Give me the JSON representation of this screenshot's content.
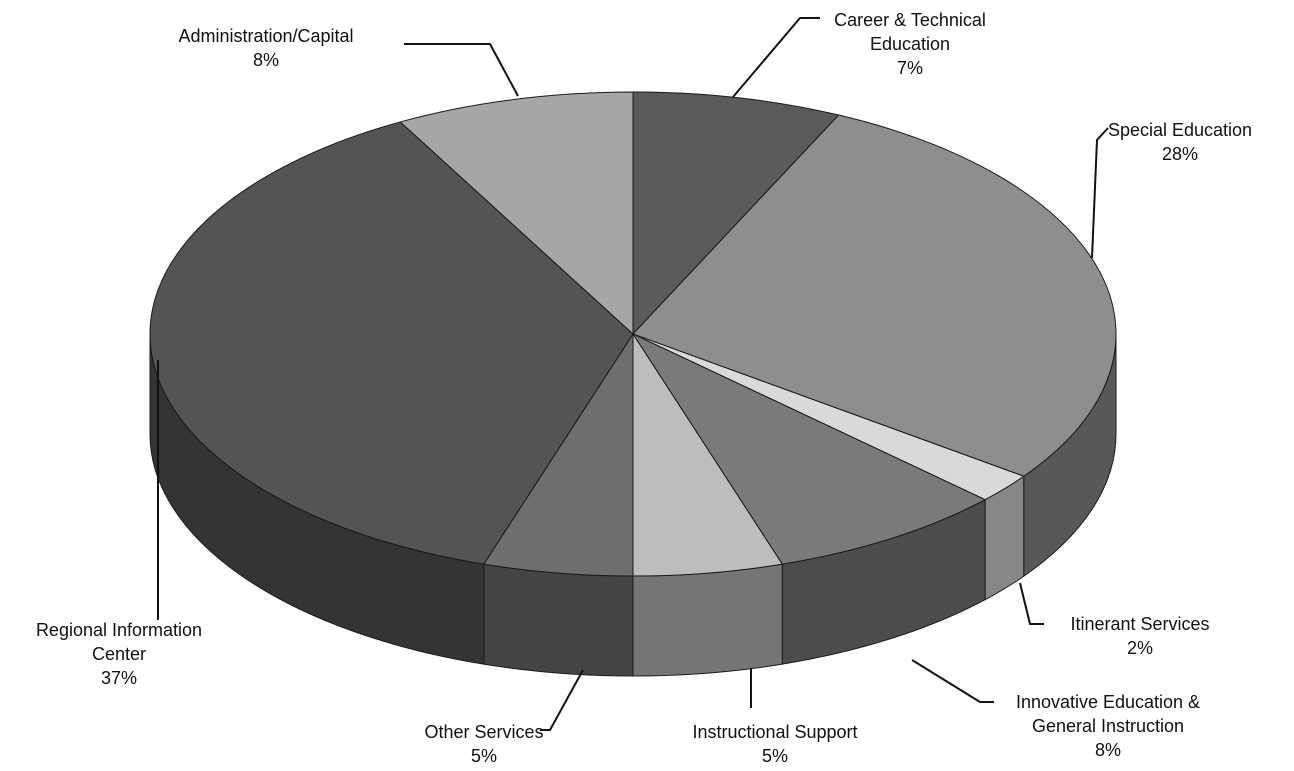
{
  "chart_data": {
    "type": "pie",
    "style": "3d",
    "title": "",
    "slices": [
      {
        "label": "Career & Technical\nEducation",
        "pct_label": "7%",
        "value": 7,
        "color": "#5a5a5a"
      },
      {
        "label": "Special Education",
        "pct_label": "28%",
        "value": 28,
        "color": "#8e8e8e"
      },
      {
        "label": "Itinerant Services",
        "pct_label": "2%",
        "value": 2,
        "color": "#d9d9d9"
      },
      {
        "label": "Innovative Education &\nGeneral Instruction",
        "pct_label": "8%",
        "value": 8,
        "color": "#7a7a7a"
      },
      {
        "label": "Instructional  Support",
        "pct_label": "5%",
        "value": 5,
        "color": "#bdbdbd"
      },
      {
        "label": "Other Services",
        "pct_label": "5%",
        "value": 5,
        "color": "#6e6e6e"
      },
      {
        "label": "Regional Information\nCenter",
        "pct_label": "37%",
        "value": 37,
        "color": "#545454"
      },
      {
        "label": "Administration/Capital",
        "pct_label": "8%",
        "value": 8,
        "color": "#a6a6a6"
      }
    ]
  }
}
